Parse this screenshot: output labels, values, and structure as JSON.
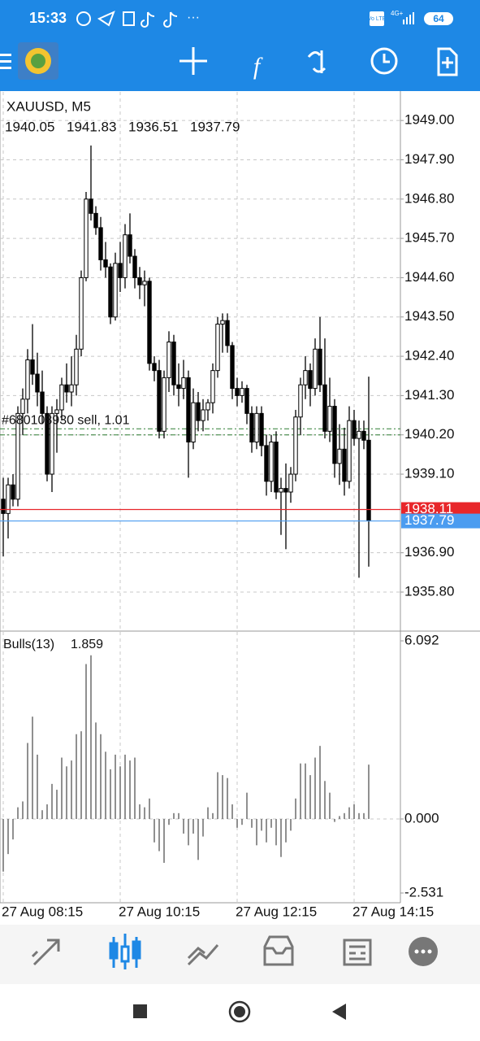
{
  "status_bar": {
    "time": "15:33",
    "volte": "Vo LTE",
    "network": "4G+",
    "battery": "64"
  },
  "chart_data": {
    "type": "candlestick",
    "symbol": "XAUUSD, M5",
    "categories": [
      "27 Aug 08:15",
      null,
      null,
      null,
      null,
      null,
      null,
      null,
      null,
      null,
      null,
      null,
      null,
      null,
      null,
      null,
      null,
      null,
      null,
      null,
      null,
      null,
      null,
      null,
      "27 Aug 10:15",
      null,
      null,
      null,
      null,
      null,
      null,
      null,
      null,
      null,
      null,
      null,
      null,
      null,
      null,
      null,
      null,
      null,
      null,
      null,
      null,
      null,
      null,
      null,
      "27 Aug 12:15",
      null,
      null,
      null,
      null,
      null,
      null,
      null,
      null,
      null,
      null,
      null,
      null,
      null,
      null,
      null,
      null,
      null,
      null,
      null,
      null,
      null,
      null,
      null,
      "27 Aug 14:15",
      null,
      null,
      null
    ],
    "open": [
      1938.4,
      1938.0,
      1938.8,
      1938.4,
      1940.8,
      1941.2,
      1942.3,
      1941.9,
      1941.4,
      1940.8,
      1939.1,
      1940.8,
      1940.9,
      1941.6,
      1941.4,
      1941.6,
      1942.6,
      1944.6,
      1946.8,
      1946.4,
      1946.0,
      1945.1,
      1944.9,
      1943.5,
      1945.0,
      1944.6,
      1945.8,
      1945.2,
      1944.6,
      1944.4,
      1944.5,
      1942.2,
      1942.0,
      1940.3,
      1941.8,
      1942.8,
      1941.6,
      1941.5,
      1941.8,
      1940.0,
      1941.1,
      1940.6,
      1940.9,
      1941.1,
      1942.0,
      1943.3,
      1943.4,
      1942.7,
      1941.5,
      1941.3,
      1941.5,
      1940.8,
      1940.0,
      1940.8,
      1939.9,
      1938.9,
      1940.0,
      1938.6,
      1938.7,
      1938.6,
      1939.1,
      1940.7,
      1941.6,
      1942.0,
      1941.5,
      1942.6,
      1941.6,
      1940.3,
      1941.0,
      1939.4,
      1939.8,
      1938.9,
      1940.6,
      1940.1,
      1940.3,
      1940.05
    ],
    "high": [
      1939.0,
      1939.0,
      1939.1,
      1941.0,
      1941.5,
      1942.6,
      1943.3,
      1942.5,
      1942.0,
      1941.0,
      1941.0,
      1941.2,
      1941.8,
      1942.2,
      1942.4,
      1943.0,
      1944.8,
      1947.0,
      1948.3,
      1946.6,
      1946.3,
      1945.6,
      1945.0,
      1945.3,
      1945.6,
      1946.1,
      1946.4,
      1945.4,
      1944.9,
      1944.8,
      1944.6,
      1942.4,
      1942.3,
      1942.0,
      1943.1,
      1943.0,
      1942.2,
      1942.3,
      1942.0,
      1941.5,
      1941.4,
      1941.2,
      1941.2,
      1942.2,
      1943.5,
      1943.6,
      1943.6,
      1942.8,
      1941.8,
      1941.7,
      1941.6,
      1941.0,
      1941.0,
      1941.0,
      1940.2,
      1940.2,
      1940.3,
      1939.0,
      1939.4,
      1939.3,
      1940.9,
      1941.8,
      1942.4,
      1942.2,
      1942.9,
      1943.5,
      1942.9,
      1941.8,
      1941.2,
      1940.5,
      1940.4,
      1941.0,
      1940.9,
      1940.6,
      1940.6,
      1941.83
    ],
    "low": [
      1936.8,
      1937.3,
      1938.2,
      1938.2,
      1940.2,
      1940.8,
      1941.6,
      1941.0,
      1940.5,
      1938.9,
      1938.6,
      1939.7,
      1940.6,
      1941.1,
      1941.0,
      1941.3,
      1942.4,
      1944.5,
      1946.2,
      1945.8,
      1944.8,
      1944.6,
      1943.3,
      1943.4,
      1944.2,
      1944.3,
      1945.0,
      1944.3,
      1944.0,
      1943.8,
      1942.0,
      1941.7,
      1940.1,
      1940.1,
      1941.4,
      1941.3,
      1941.0,
      1941.2,
      1939.0,
      1939.8,
      1940.3,
      1940.3,
      1940.6,
      1940.8,
      1941.8,
      1942.5,
      1942.5,
      1941.2,
      1941.0,
      1941.1,
      1940.5,
      1939.7,
      1939.8,
      1939.6,
      1938.5,
      1938.6,
      1938.4,
      1937.4,
      1937.0,
      1938.3,
      1938.9,
      1940.2,
      1941.2,
      1941.0,
      1941.3,
      1941.4,
      1940.1,
      1940.0,
      1939.0,
      1938.8,
      1938.5,
      1938.7,
      1939.9,
      1936.2,
      1939.8,
      1936.51
    ],
    "close": [
      1938.0,
      1938.8,
      1938.4,
      1940.8,
      1941.2,
      1942.3,
      1941.9,
      1941.4,
      1940.8,
      1939.1,
      1940.8,
      1940.9,
      1941.6,
      1941.4,
      1941.6,
      1942.6,
      1944.6,
      1946.8,
      1946.4,
      1946.0,
      1945.1,
      1944.9,
      1943.5,
      1945.0,
      1944.6,
      1945.8,
      1945.2,
      1944.6,
      1944.4,
      1944.5,
      1942.2,
      1942.0,
      1940.3,
      1941.8,
      1942.8,
      1941.6,
      1941.5,
      1941.8,
      1940.0,
      1941.1,
      1940.6,
      1940.9,
      1941.1,
      1942.0,
      1943.3,
      1943.4,
      1942.7,
      1941.5,
      1941.3,
      1941.5,
      1940.8,
      1940.0,
      1940.8,
      1939.9,
      1938.9,
      1940.0,
      1938.6,
      1938.7,
      1938.6,
      1939.1,
      1940.7,
      1941.6,
      1942.0,
      1941.5,
      1942.6,
      1941.6,
      1940.3,
      1941.0,
      1939.4,
      1939.8,
      1938.9,
      1940.6,
      1940.1,
      1940.3,
      1940.05,
      1937.79
    ],
    "ylim": [
      1934.73,
      1949.8
    ],
    "yticks": [
      {
        "value": 1949,
        "label": "1949.00"
      },
      {
        "value": 1947.9,
        "label": "1947.90"
      },
      {
        "value": 1946.8,
        "label": "1946.80"
      },
      {
        "value": 1945.7,
        "label": "1945.70"
      },
      {
        "value": 1944.6,
        "label": "1944.60"
      },
      {
        "value": 1943.5,
        "label": "1943.50"
      },
      {
        "value": 1942.4,
        "label": "1942.40"
      },
      {
        "value": 1941.3,
        "label": "1941.30"
      },
      {
        "value": 1940.2,
        "label": "1940.20"
      },
      {
        "value": 1939.1,
        "label": "1939.10"
      },
      {
        "value": 1936.9,
        "label": "1936.90"
      },
      {
        "value": 1935.8,
        "label": "1935.80"
      }
    ],
    "grid": true,
    "ask": 1938.11,
    "ask_color": "#e8262a",
    "bid_color": "#4b9cf0",
    "order": {
      "label": "#680108930 sell, 1.01",
      "levels": [
        1940.37,
        1940.2
      ],
      "color": "#2e7d32"
    },
    "indicator": {
      "type": "bar",
      "name": "Bulls(13)",
      "color": "#555555",
      "values": [
        -1.8,
        -1.2,
        -0.7,
        0.4,
        0.6,
        2.6,
        3.5,
        2.2,
        0.3,
        0.5,
        1.2,
        1.0,
        2.1,
        1.8,
        2.0,
        2.9,
        3.0,
        5.3,
        5.6,
        3.3,
        2.9,
        2.3,
        1.7,
        2.2,
        1.8,
        2.2,
        2.0,
        2.1,
        0.5,
        0.4,
        0.7,
        -0.8,
        -1.1,
        -1.5,
        -0.2,
        0.2,
        0.2,
        -0.5,
        -0.9,
        -0.5,
        -1.4,
        -0.6,
        0.4,
        0.2,
        1.6,
        1.5,
        1.4,
        0.5,
        -0.3,
        -0.2,
        0.9,
        -0.3,
        -0.9,
        -0.4,
        -0.8,
        -0.3,
        -0.9,
        -1.3,
        -0.8,
        -0.4,
        0.7,
        1.9,
        1.9,
        1.5,
        2.1,
        2.5,
        1.3,
        0.9,
        -0.1,
        0.1,
        0.2,
        0.4,
        0.5,
        0.2,
        0.2,
        1.859
      ],
      "ylim": [
        -2.531,
        6.092
      ],
      "yticks": [
        6.092,
        {
          "value": 0,
          "label": "0.000"
        },
        -2.531
      ]
    }
  }
}
